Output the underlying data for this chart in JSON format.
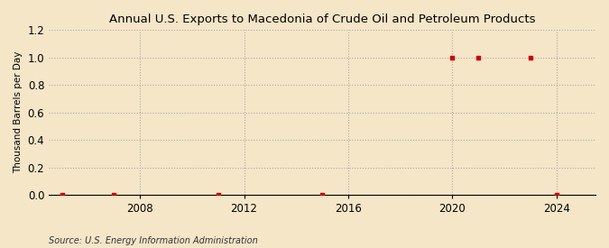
{
  "title": "Annual U.S. Exports to Macedonia of Crude Oil and Petroleum Products",
  "ylabel": "Thousand Barrels per Day",
  "source": "Source: U.S. Energy Information Administration",
  "background_color": "#f5e6c8",
  "plot_bg_color": "#f5e6c8",
  "data_color": "#cc0000",
  "xlim": [
    2004.5,
    2025.5
  ],
  "ylim": [
    0,
    1.2
  ],
  "yticks": [
    0.0,
    0.2,
    0.4,
    0.6,
    0.8,
    1.0,
    1.2
  ],
  "xticks": [
    2008,
    2012,
    2016,
    2020,
    2024
  ],
  "years": [
    2005,
    2007,
    2011,
    2015,
    2020,
    2021,
    2023,
    2024
  ],
  "values": [
    0.0,
    0.0,
    0.0,
    0.0,
    1.0,
    1.0,
    1.0,
    0.0
  ]
}
